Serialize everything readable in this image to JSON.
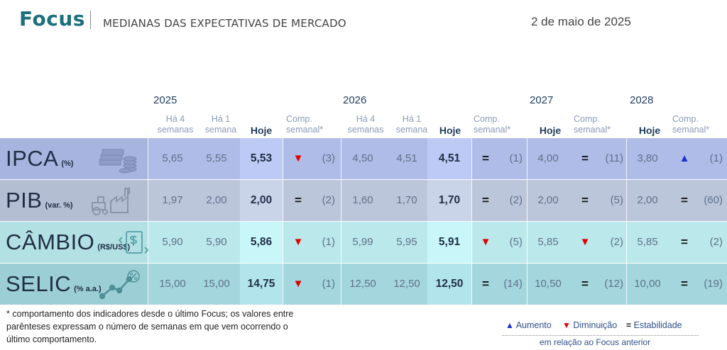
{
  "header": {
    "logo": "Focus",
    "subtitle": "MEDIANAS DAS EXPECTATIVAS DE MERCADO",
    "date": "2 de maio de 2025"
  },
  "years": [
    "2025",
    "2026",
    "2027",
    "2028"
  ],
  "col_labels": {
    "ha4": "Há 4 semanas",
    "ha1": "Há 1 semana",
    "hoje": "Hoje",
    "comp": "Comp. semanal*"
  },
  "rows": [
    {
      "name": "IPCA",
      "unit": "(%)",
      "icon": "money-coins-icon",
      "color": "#a6b4df",
      "y2025": {
        "ha4": "5,65",
        "ha1": "5,55",
        "hoje": "5,53",
        "trend": "down",
        "weeks": "(3)"
      },
      "y2026": {
        "ha4": "4,50",
        "ha1": "4,51",
        "hoje": "4,51",
        "trend": "stable",
        "weeks": "(1)"
      },
      "y2027": {
        "hoje": "4,00",
        "trend": "stable",
        "weeks": "(11)"
      },
      "y2028": {
        "hoje": "3,80",
        "trend": "up",
        "weeks": "(1)"
      }
    },
    {
      "name": "PIB",
      "unit": "(var. %)",
      "icon": "factory-tractor-icon",
      "color": "#b3bed2",
      "y2025": {
        "ha4": "1,97",
        "ha1": "2,00",
        "hoje": "2,00",
        "trend": "stable",
        "weeks": "(2)"
      },
      "y2026": {
        "ha4": "1,60",
        "ha1": "1,70",
        "hoje": "1,70",
        "trend": "stable",
        "weeks": "(2)"
      },
      "y2027": {
        "hoje": "2,00",
        "trend": "stable",
        "weeks": "(5)"
      },
      "y2028": {
        "hoje": "2,00",
        "trend": "stable",
        "weeks": "(60)"
      }
    },
    {
      "name": "CÂMBIO",
      "unit": "(R$/US$)",
      "icon": "exchange-dollar-icon",
      "color": "#b3e1e3",
      "y2025": {
        "ha4": "5,90",
        "ha1": "5,90",
        "hoje": "5,86",
        "trend": "down",
        "weeks": "(1)"
      },
      "y2026": {
        "ha4": "5,99",
        "ha1": "5,95",
        "hoje": "5,91",
        "trend": "down",
        "weeks": "(5)"
      },
      "y2027": {
        "hoje": "5,85",
        "trend": "down",
        "weeks": "(2)"
      },
      "y2028": {
        "hoje": "5,85",
        "trend": "stable",
        "weeks": "(2)"
      }
    },
    {
      "name": "SELIC",
      "unit": "(% a.a.)",
      "icon": "percent-chart-icon",
      "color": "#9ccfd5",
      "y2025": {
        "ha4": "15,00",
        "ha1": "15,00",
        "hoje": "14,75",
        "trend": "down",
        "weeks": "(1)"
      },
      "y2026": {
        "ha4": "12,50",
        "ha1": "12,50",
        "hoje": "12,50",
        "trend": "stable",
        "weeks": "(14)"
      },
      "y2027": {
        "hoje": "10,50",
        "trend": "stable",
        "weeks": "(12)"
      },
      "y2028": {
        "hoje": "10,00",
        "trend": "stable",
        "weeks": "(19)"
      }
    }
  ],
  "symbols": {
    "down": "▼",
    "up": "▲",
    "stable": "="
  },
  "footnote": "* comportamento dos indicadores desde o último Focus; os valores entre parênteses expressam o número de semanas em que vem ocorrendo o último comportamento.",
  "legend": {
    "aumento": "Aumento",
    "diminuicao": "Diminuição",
    "estabilidade": "Estabilidade",
    "note": "em relação ao Focus anterior"
  }
}
